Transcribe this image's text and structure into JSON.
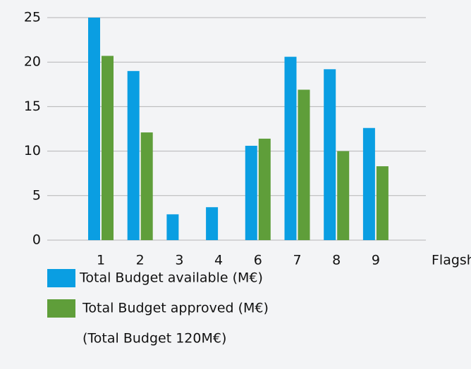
{
  "chart_data": {
    "type": "bar",
    "categories": [
      "1",
      "2",
      "3",
      "4",
      "6",
      "7",
      "8",
      "9"
    ],
    "x_label": "Flagship",
    "series": [
      {
        "name": "Total Budget available (M€)",
        "color": "#0a9ee2",
        "values": [
          25,
          19,
          2.9,
          3.7,
          10.6,
          20.6,
          19.2,
          12.6
        ]
      },
      {
        "name": "Total Budget approved (M€)",
        "color": "#5f9e3a",
        "values": [
          20.7,
          12.1,
          0,
          0,
          11.4,
          16.9,
          10,
          8.3
        ]
      }
    ],
    "note": "(Total Budget 120M€)",
    "ylim": [
      0,
      25
    ],
    "yticks": [
      0,
      5,
      10,
      15,
      20,
      25
    ],
    "grid": true
  }
}
